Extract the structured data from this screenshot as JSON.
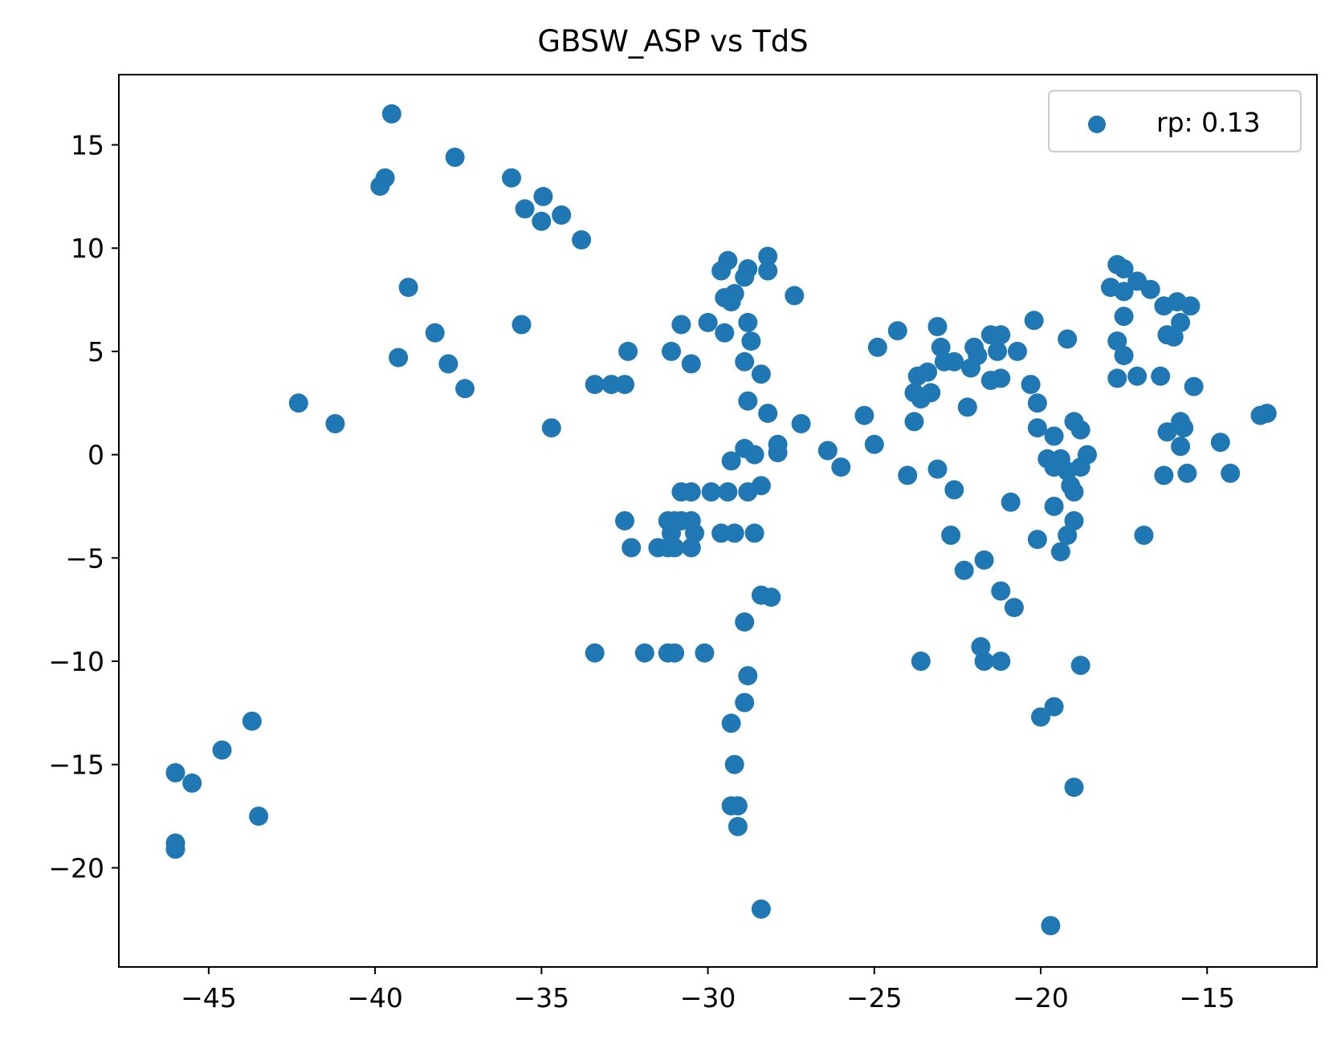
{
  "chart_data": {
    "type": "scatter",
    "title": "GBSW_ASP vs TdS",
    "xlabel": "",
    "ylabel": "",
    "xlim": [
      -47.7,
      -11.7
    ],
    "ylim": [
      -24.8,
      18.4
    ],
    "xticks": [
      -45,
      -40,
      -35,
      -30,
      -25,
      -20,
      -15
    ],
    "yticks": [
      15,
      10,
      5,
      0,
      -5,
      -10,
      -15,
      -20
    ],
    "xtick_labels": [
      "−45",
      "−40",
      "−35",
      "−30",
      "−25",
      "−20",
      "−15"
    ],
    "ytick_labels": [
      "15",
      "10",
      "5",
      "0",
      "−5",
      "−10",
      "−15",
      "−20"
    ],
    "grid": false,
    "legend": {
      "position": "top-right",
      "entries": [
        "rp: 0.13"
      ]
    },
    "series": [
      {
        "name": "rp: 0.13",
        "color": "#1f77b4",
        "points": [
          [
            -39.5,
            16.5
          ],
          [
            -37.6,
            14.4
          ],
          [
            -39.7,
            13.4
          ],
          [
            -39.85,
            13.0
          ],
          [
            -35.9,
            13.4
          ],
          [
            -35.5,
            11.9
          ],
          [
            -34.95,
            12.5
          ],
          [
            -35.0,
            11.3
          ],
          [
            -34.4,
            11.6
          ],
          [
            -33.8,
            10.4
          ],
          [
            -39.0,
            8.1
          ],
          [
            -38.2,
            5.9
          ],
          [
            -35.6,
            6.3
          ],
          [
            -39.3,
            4.7
          ],
          [
            -37.8,
            4.4
          ],
          [
            -37.3,
            3.2
          ],
          [
            -42.3,
            2.5
          ],
          [
            -41.2,
            1.5
          ],
          [
            -34.7,
            1.3
          ],
          [
            -33.4,
            3.4
          ],
          [
            -32.9,
            3.4
          ],
          [
            -32.4,
            5.0
          ],
          [
            -32.5,
            3.4
          ],
          [
            -31.1,
            5.0
          ],
          [
            -30.8,
            6.3
          ],
          [
            -30.5,
            4.4
          ],
          [
            -30.0,
            6.4
          ],
          [
            -29.5,
            5.9
          ],
          [
            -29.6,
            8.9
          ],
          [
            -29.4,
            9.4
          ],
          [
            -29.2,
            7.8
          ],
          [
            -29.5,
            7.6
          ],
          [
            -29.3,
            7.4
          ],
          [
            -28.8,
            9.0
          ],
          [
            -28.9,
            8.6
          ],
          [
            -28.2,
            9.6
          ],
          [
            -28.2,
            8.9
          ],
          [
            -27.4,
            7.7
          ],
          [
            -28.8,
            6.4
          ],
          [
            -28.7,
            5.5
          ],
          [
            -28.9,
            4.5
          ],
          [
            -28.4,
            3.9
          ],
          [
            -28.8,
            2.6
          ],
          [
            -28.2,
            2.0
          ],
          [
            -27.2,
            1.5
          ],
          [
            -27.9,
            0.5
          ],
          [
            -27.9,
            0.1
          ],
          [
            -28.9,
            0.3
          ],
          [
            -28.6,
            0.0
          ],
          [
            -29.3,
            -0.3
          ],
          [
            -30.8,
            -1.8
          ],
          [
            -30.5,
            -1.8
          ],
          [
            -29.9,
            -1.8
          ],
          [
            -29.4,
            -1.8
          ],
          [
            -28.8,
            -1.8
          ],
          [
            -28.4,
            -1.5
          ],
          [
            -32.5,
            -3.2
          ],
          [
            -32.3,
            -4.5
          ],
          [
            -31.5,
            -4.5
          ],
          [
            -31.2,
            -4.5
          ],
          [
            -31.0,
            -4.5
          ],
          [
            -30.5,
            -4.5
          ],
          [
            -31.2,
            -3.2
          ],
          [
            -31.0,
            -3.2
          ],
          [
            -30.8,
            -3.2
          ],
          [
            -30.5,
            -3.2
          ],
          [
            -31.1,
            -3.8
          ],
          [
            -30.4,
            -3.8
          ],
          [
            -29.6,
            -3.8
          ],
          [
            -29.2,
            -3.8
          ],
          [
            -28.6,
            -3.8
          ],
          [
            -28.4,
            -6.8
          ],
          [
            -28.1,
            -6.9
          ],
          [
            -28.9,
            -8.1
          ],
          [
            -33.4,
            -9.6
          ],
          [
            -31.9,
            -9.6
          ],
          [
            -31.2,
            -9.6
          ],
          [
            -31.0,
            -9.6
          ],
          [
            -30.1,
            -9.6
          ],
          [
            -28.8,
            -10.7
          ],
          [
            -28.9,
            -12.0
          ],
          [
            -29.3,
            -13.0
          ],
          [
            -29.2,
            -15.0
          ],
          [
            -29.3,
            -17.0
          ],
          [
            -29.1,
            -17.0
          ],
          [
            -29.1,
            -18.0
          ],
          [
            -28.4,
            -22.0
          ],
          [
            -46.0,
            -15.4
          ],
          [
            -45.5,
            -15.9
          ],
          [
            -44.6,
            -14.3
          ],
          [
            -43.7,
            -12.9
          ],
          [
            -43.5,
            -17.5
          ],
          [
            -46.0,
            -18.8
          ],
          [
            -46.0,
            -19.1
          ],
          [
            -26.4,
            0.2
          ],
          [
            -26.0,
            -0.6
          ],
          [
            -25.3,
            1.9
          ],
          [
            -25.0,
            0.5
          ],
          [
            -24.9,
            5.2
          ],
          [
            -24.3,
            6.0
          ],
          [
            -24.0,
            -1.0
          ],
          [
            -23.8,
            1.6
          ],
          [
            -23.8,
            3.0
          ],
          [
            -23.7,
            3.8
          ],
          [
            -23.6,
            2.7
          ],
          [
            -23.4,
            4.0
          ],
          [
            -23.3,
            3.0
          ],
          [
            -23.1,
            -0.7
          ],
          [
            -23.1,
            6.2
          ],
          [
            -23.0,
            5.2
          ],
          [
            -22.9,
            4.5
          ],
          [
            -22.6,
            4.5
          ],
          [
            -22.6,
            -1.7
          ],
          [
            -22.2,
            2.3
          ],
          [
            -22.1,
            4.2
          ],
          [
            -22.0,
            5.2
          ],
          [
            -21.9,
            4.8
          ],
          [
            -21.5,
            5.8
          ],
          [
            -21.2,
            5.8
          ],
          [
            -21.3,
            5.0
          ],
          [
            -21.5,
            3.6
          ],
          [
            -21.2,
            3.7
          ],
          [
            -20.7,
            5.0
          ],
          [
            -20.2,
            6.5
          ],
          [
            -20.3,
            3.4
          ],
          [
            -20.1,
            2.5
          ],
          [
            -20.1,
            1.3
          ],
          [
            -19.6,
            0.9
          ],
          [
            -19.2,
            5.6
          ],
          [
            -22.7,
            -3.9
          ],
          [
            -22.3,
            -5.6
          ],
          [
            -21.7,
            -5.1
          ],
          [
            -21.2,
            -6.6
          ],
          [
            -20.9,
            -2.3
          ],
          [
            -20.8,
            -7.4
          ],
          [
            -20.1,
            -4.1
          ],
          [
            -21.8,
            -9.3
          ],
          [
            -21.7,
            -10.0
          ],
          [
            -21.2,
            -10.0
          ],
          [
            -23.6,
            -10.0
          ],
          [
            -19.8,
            -0.2
          ],
          [
            -19.6,
            -0.6
          ],
          [
            -19.4,
            -0.2
          ],
          [
            -19.2,
            -0.8
          ],
          [
            -19.0,
            1.6
          ],
          [
            -18.8,
            1.2
          ],
          [
            -18.8,
            -0.6
          ],
          [
            -18.6,
            0.0
          ],
          [
            -19.1,
            -1.5
          ],
          [
            -19.0,
            -1.8
          ],
          [
            -19.6,
            -2.5
          ],
          [
            -19.0,
            -3.2
          ],
          [
            -19.2,
            -3.9
          ],
          [
            -19.4,
            -4.7
          ],
          [
            -18.8,
            -10.2
          ],
          [
            -20.0,
            -12.7
          ],
          [
            -19.6,
            -12.2
          ],
          [
            -19.0,
            -16.1
          ],
          [
            -19.7,
            -22.8
          ],
          [
            -17.9,
            8.1
          ],
          [
            -17.7,
            9.2
          ],
          [
            -17.5,
            9.0
          ],
          [
            -17.5,
            7.9
          ],
          [
            -17.1,
            8.4
          ],
          [
            -16.7,
            8.0
          ],
          [
            -17.5,
            6.7
          ],
          [
            -17.7,
            5.5
          ],
          [
            -17.5,
            4.8
          ],
          [
            -17.7,
            3.7
          ],
          [
            -17.1,
            3.8
          ],
          [
            -16.4,
            3.8
          ],
          [
            -16.3,
            7.2
          ],
          [
            -15.9,
            7.4
          ],
          [
            -15.5,
            7.2
          ],
          [
            -15.8,
            6.4
          ],
          [
            -16.2,
            5.8
          ],
          [
            -16.0,
            5.7
          ],
          [
            -15.4,
            3.3
          ],
          [
            -16.2,
            1.1
          ],
          [
            -15.8,
            1.6
          ],
          [
            -15.7,
            1.3
          ],
          [
            -15.8,
            0.4
          ],
          [
            -16.3,
            -1.0
          ],
          [
            -15.6,
            -0.9
          ],
          [
            -14.6,
            0.6
          ],
          [
            -14.3,
            -0.9
          ],
          [
            -13.4,
            1.9
          ],
          [
            -13.2,
            2.0
          ],
          [
            -16.9,
            -3.9
          ]
        ]
      }
    ]
  }
}
